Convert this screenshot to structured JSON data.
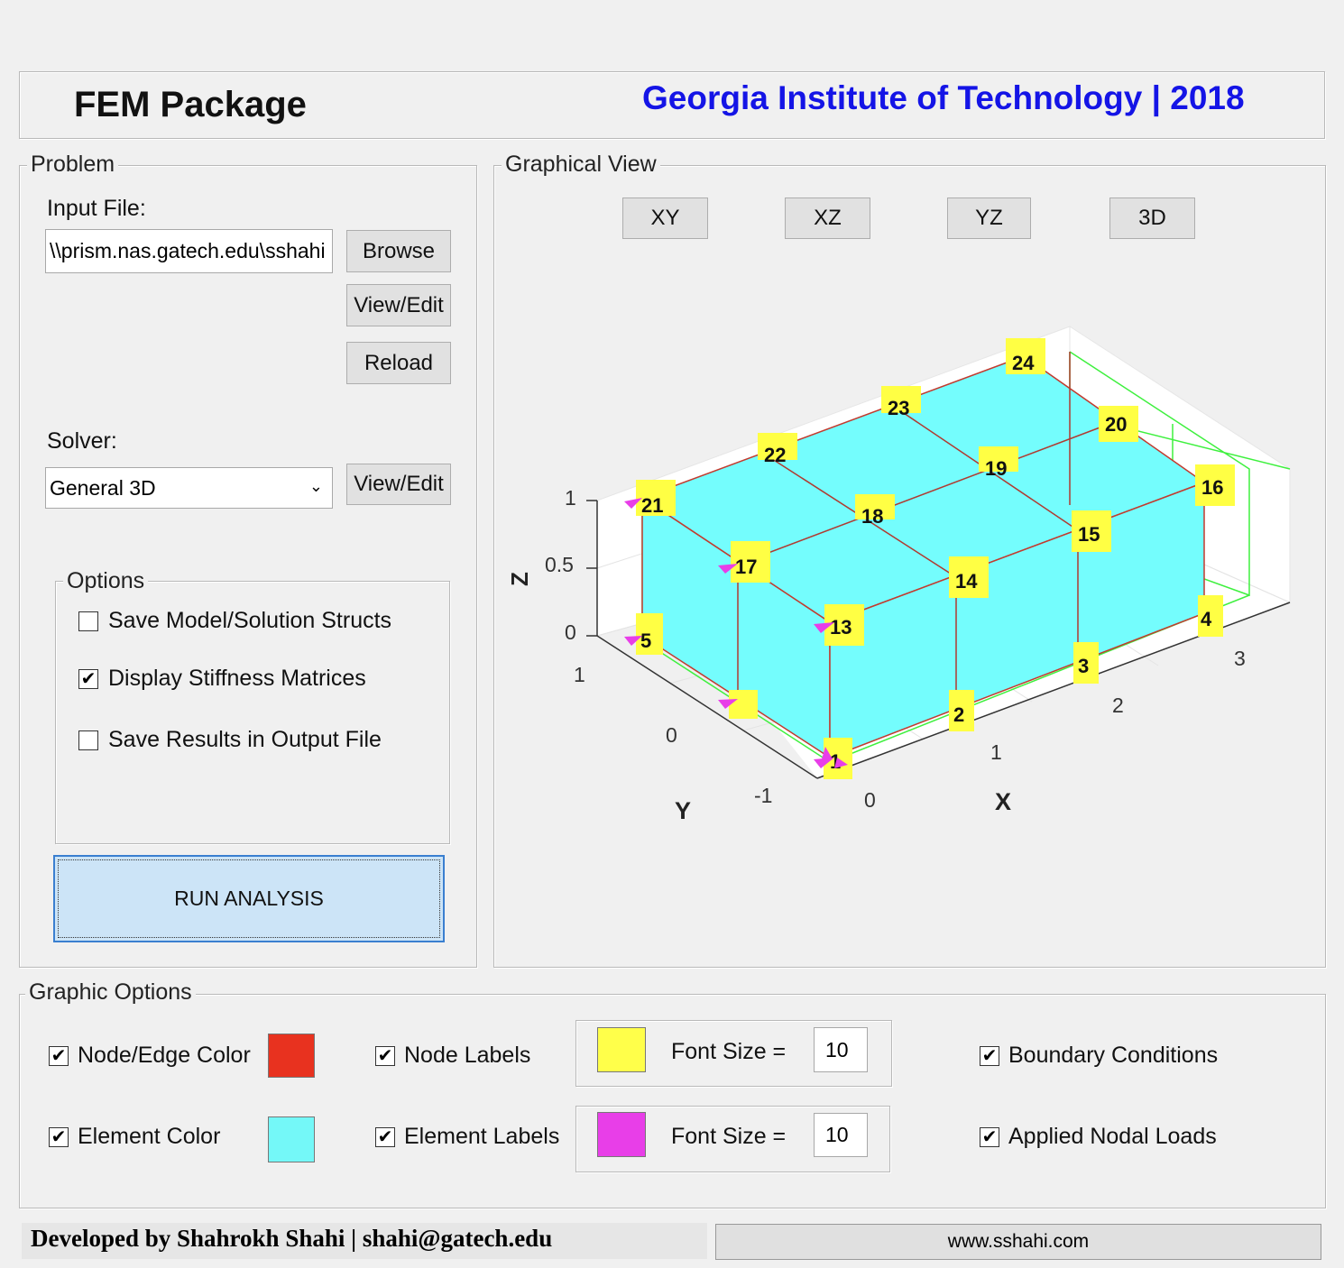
{
  "header": {
    "app_title": "FEM Package",
    "institution": "Georgia Institute of Technology | 2018"
  },
  "problem": {
    "legend": "Problem",
    "input_file_label": "Input File:",
    "input_file_value": "\\\\prism.nas.gatech.edu\\sshahi",
    "browse_label": "Browse",
    "view_edit_label": "View/Edit",
    "reload_label": "Reload",
    "solver_label": "Solver:",
    "solver_value": "General 3D",
    "solver_view_edit_label": "View/Edit",
    "options": {
      "legend": "Options",
      "items": [
        {
          "label": "Save Model/Solution Structs",
          "checked": false
        },
        {
          "label": "Display Stiffness Matrices",
          "checked": true
        },
        {
          "label": "Save Results in Output File",
          "checked": false
        }
      ]
    },
    "run_label": "RUN  ANALYSIS"
  },
  "graphical_view": {
    "legend": "Graphical View",
    "views": [
      "XY",
      "XZ",
      "YZ",
      "3D"
    ],
    "plot": {
      "z_label": "Z",
      "x_label": "X",
      "y_label": "Y",
      "z_ticks": [
        "0",
        "0.5",
        "1"
      ],
      "x_ticks": [
        "0",
        "1",
        "2",
        "3"
      ],
      "y_ticks": [
        "-1",
        "0",
        "1"
      ],
      "node_labels": [
        "1",
        "2",
        "3",
        "4",
        "5",
        "13",
        "14",
        "15",
        "16",
        "17",
        "18",
        "19",
        "20",
        "21",
        "22",
        "23",
        "24"
      ],
      "colors": {
        "node_label_bg": "#ffff44",
        "element": "#74fdfd",
        "edge": "#d82c20",
        "grid": "#3ef03e",
        "load": "#e83ee8"
      }
    }
  },
  "graphic_options": {
    "legend": "Graphic Options",
    "node_edge_color_label": "Node/Edge Color",
    "node_edge_color": "#e8321f",
    "element_color_label": "Element Color",
    "element_color": "#74f8f8",
    "node_labels_label": "Node Labels",
    "node_label_color": "#ffff4a",
    "element_labels_label": "Element Labels",
    "element_label_color": "#e83ee8",
    "font_size_label": "Font Size =",
    "node_font_size": "10",
    "element_font_size": "10",
    "boundary_conditions_label": "Boundary Conditions",
    "applied_loads_label": "Applied Nodal Loads"
  },
  "footer": {
    "developer": "Developed by Shahrokh Shahi | shahi@gatech.edu",
    "website": "www.sshahi.com"
  }
}
